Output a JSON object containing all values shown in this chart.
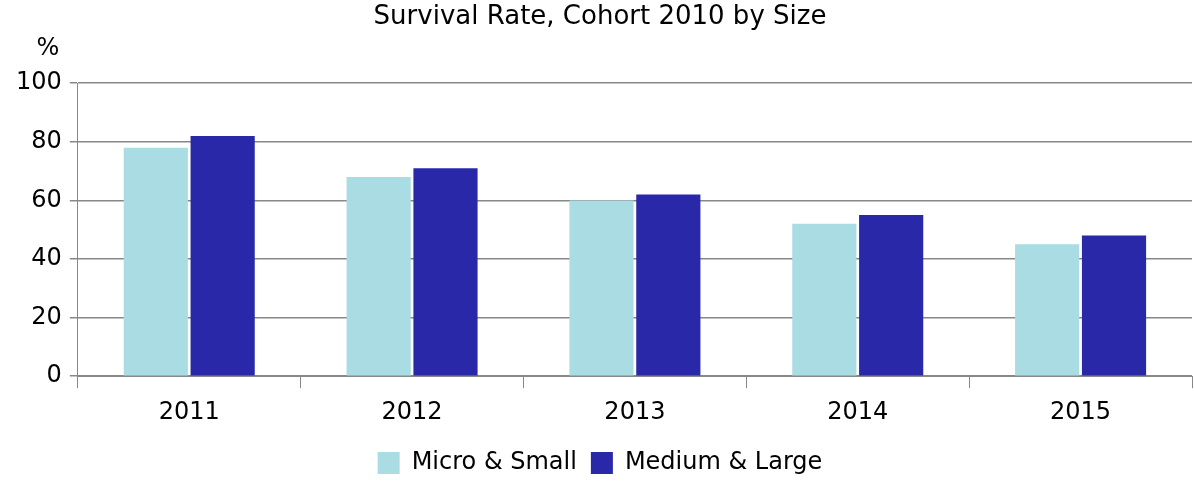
{
  "chart_data": {
    "type": "bar",
    "title": "Survival Rate, Cohort 2010 by Size",
    "ylabel": "%",
    "categories": [
      "2011",
      "2012",
      "2013",
      "2014",
      "2015"
    ],
    "series": [
      {
        "name": "Micro & Small",
        "color": "#aadde3",
        "values": [
          78,
          68,
          60,
          52,
          45
        ]
      },
      {
        "name": "Medium & Large",
        "color": "#2828a8",
        "values": [
          82,
          71,
          62,
          55,
          48
        ]
      }
    ],
    "ylim": [
      0,
      100
    ],
    "yticks": [
      0,
      20,
      40,
      60,
      80,
      100
    ],
    "grid": "y",
    "legend": "bottom"
  }
}
